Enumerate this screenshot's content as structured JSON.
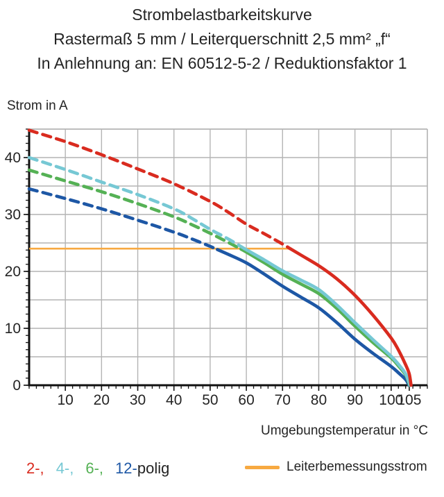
{
  "title": {
    "line1": "Strombelastbarkeitskurve",
    "line2": "Rastermaß 5 mm / Leiterquerschnitt 2,5 mm² „f“",
    "line3": "In Anlehnung an: EN 60512-5-2 / Reduktionsfaktor 1"
  },
  "colors": {
    "pole2": "#d92b1f",
    "pole4": "#76c8d4",
    "pole6": "#55b155",
    "pole12": "#1d57a5",
    "rated": "#f7a941",
    "grid": "#b4b4b4",
    "axis": "#111111",
    "text": "#242424"
  },
  "chart_data": {
    "type": "line",
    "title": "Strombelastbarkeitskurve",
    "xlabel": "Umgebungstemperatur in °C",
    "ylabel": "Strom in A",
    "xlim": [
      0,
      110
    ],
    "ylim": [
      0,
      45
    ],
    "grid": true,
    "x_grid_step": 10,
    "y_grid_step": 5,
    "x_minor_tick_step": 2,
    "y_minor_tick_step": 1.25,
    "x_ticks": [
      10,
      20,
      30,
      40,
      50,
      60,
      70,
      80,
      90,
      100,
      105
    ],
    "y_ticks": [
      0,
      10,
      20,
      30,
      40
    ],
    "dashed_above_a": 24,
    "rated_current": {
      "label": "Leiterbemessungsstrom",
      "value_a": 24,
      "x_start_c": 0,
      "x_end_c": 72,
      "color": "#f7a941"
    },
    "series": [
      {
        "name": "12-polig",
        "color": "#1d57a5",
        "solid_from_c": 52,
        "points": [
          [
            0,
            34.5
          ],
          [
            10,
            32.8
          ],
          [
            20,
            31.0
          ],
          [
            30,
            29.0
          ],
          [
            40,
            26.9
          ],
          [
            45,
            25.7
          ],
          [
            50,
            24.4
          ],
          [
            55,
            23.0
          ],
          [
            60,
            21.5
          ],
          [
            65,
            19.5
          ],
          [
            70,
            17.4
          ],
          [
            75,
            15.5
          ],
          [
            80,
            13.6
          ],
          [
            85,
            11.0
          ],
          [
            90,
            8.1
          ],
          [
            95,
            5.6
          ],
          [
            100,
            3.3
          ],
          [
            102,
            2.2
          ],
          [
            104,
            1.0
          ],
          [
            104.9,
            0
          ]
        ]
      },
      {
        "name": "6-polig",
        "color": "#55b155",
        "solid_from_c": 58.5,
        "points": [
          [
            0,
            37.8
          ],
          [
            10,
            35.9
          ],
          [
            20,
            34.0
          ],
          [
            30,
            31.9
          ],
          [
            40,
            29.6
          ],
          [
            45,
            28.2
          ],
          [
            50,
            26.7
          ],
          [
            55,
            25.1
          ],
          [
            60,
            23.4
          ],
          [
            65,
            21.5
          ],
          [
            70,
            19.5
          ],
          [
            75,
            17.8
          ],
          [
            80,
            16.1
          ],
          [
            85,
            13.5
          ],
          [
            90,
            10.4
          ],
          [
            95,
            7.5
          ],
          [
            100,
            4.8
          ],
          [
            102,
            3.4
          ],
          [
            104,
            1.8
          ],
          [
            105.1,
            0
          ]
        ]
      },
      {
        "name": "4-polig",
        "color": "#76c8d4",
        "solid_from_c": 59.5,
        "points": [
          [
            0,
            40.0
          ],
          [
            10,
            37.9
          ],
          [
            20,
            35.7
          ],
          [
            30,
            33.5
          ],
          [
            40,
            31.0
          ],
          [
            45,
            29.3
          ],
          [
            50,
            27.4
          ],
          [
            55,
            25.7
          ],
          [
            60,
            23.8
          ],
          [
            65,
            22.0
          ],
          [
            70,
            20.1
          ],
          [
            75,
            18.5
          ],
          [
            80,
            16.8
          ],
          [
            85,
            14.1
          ],
          [
            90,
            11.0
          ],
          [
            95,
            8.0
          ],
          [
            100,
            5.1
          ],
          [
            102,
            3.7
          ],
          [
            104,
            2.0
          ],
          [
            105.2,
            0
          ]
        ]
      },
      {
        "name": "2-polig",
        "color": "#d92b1f",
        "solid_from_c": 72,
        "points": [
          [
            0,
            44.8
          ],
          [
            10,
            42.8
          ],
          [
            20,
            40.5
          ],
          [
            30,
            38.0
          ],
          [
            40,
            35.4
          ],
          [
            50,
            32.3
          ],
          [
            55,
            30.4
          ],
          [
            60,
            28.3
          ],
          [
            65,
            26.6
          ],
          [
            70,
            24.8
          ],
          [
            75,
            22.9
          ],
          [
            80,
            21.0
          ],
          [
            85,
            18.7
          ],
          [
            90,
            15.8
          ],
          [
            95,
            12.3
          ],
          [
            100,
            8.3
          ],
          [
            102,
            6.2
          ],
          [
            104,
            3.6
          ],
          [
            105,
            2.0
          ],
          [
            105.5,
            0
          ]
        ]
      }
    ]
  },
  "legend": {
    "pole_items": [
      {
        "text": "2-,",
        "color": "#d92b1f"
      },
      {
        "text": "4-,",
        "color": "#76c8d4"
      },
      {
        "text": "6-,",
        "color": "#55b155"
      },
      {
        "text": "12-",
        "color": "#1d57a5"
      }
    ],
    "suffix": "polig",
    "rated_label": "Leiterbemessungsstrom"
  }
}
